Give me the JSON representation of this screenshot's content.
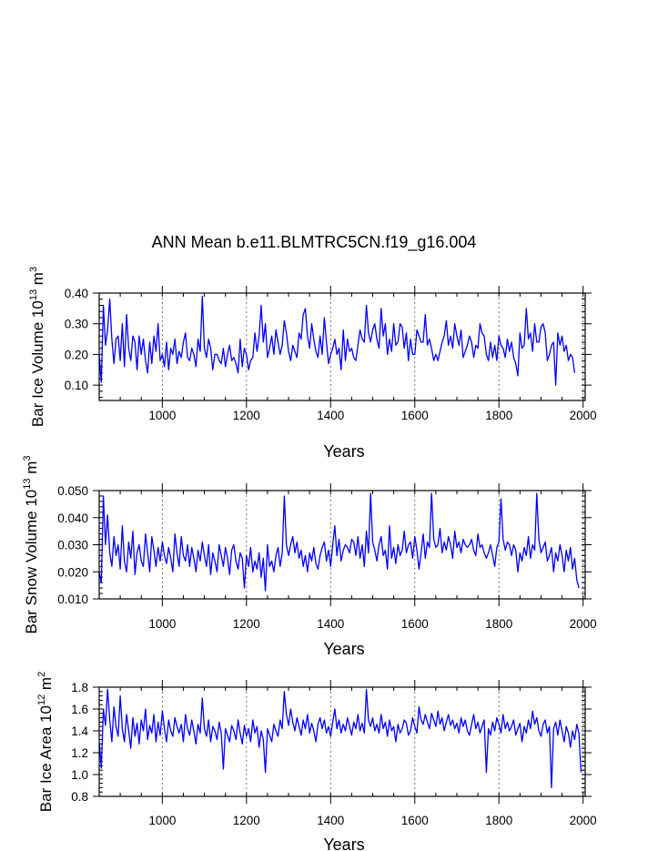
{
  "figure": {
    "title": "ANN Mean b.e11.BLMTRC5CN.f19_g16.004",
    "line_color": "#0000ff"
  },
  "chart_data": [
    {
      "type": "line",
      "series_name": "Bar Ice Volume",
      "ylabel_main": "Bar Ice Volume 10",
      "ylabel_exp": "13",
      "ylabel_unit": " m",
      "ylabel_unit_exp": "3",
      "xlabel": "Years",
      "xlim": [
        850,
        2005
      ],
      "ylim": [
        0.05,
        0.4
      ],
      "xticks": [
        1000,
        1200,
        1400,
        1600,
        1800,
        2000
      ],
      "xtick_labels": [
        "1000",
        "1200",
        "1400",
        "1600",
        "1800",
        "2000"
      ],
      "yticks": [
        0.1,
        0.2,
        0.3,
        0.4
      ],
      "ytick_labels": [
        "0.10",
        "0.20",
        "0.30",
        "0.40"
      ],
      "grid_x": "dashed vertical at each major x tick",
      "year_start": 850,
      "year_step": 5,
      "values": [
        0.2,
        0.11,
        0.36,
        0.23,
        0.28,
        0.38,
        0.25,
        0.17,
        0.25,
        0.26,
        0.18,
        0.3,
        0.16,
        0.33,
        0.22,
        0.18,
        0.26,
        0.24,
        0.15,
        0.26,
        0.2,
        0.25,
        0.18,
        0.14,
        0.24,
        0.17,
        0.26,
        0.21,
        0.3,
        0.18,
        0.2,
        0.16,
        0.24,
        0.15,
        0.22,
        0.2,
        0.25,
        0.17,
        0.21,
        0.19,
        0.24,
        0.27,
        0.19,
        0.18,
        0.22,
        0.2,
        0.16,
        0.25,
        0.21,
        0.39,
        0.22,
        0.19,
        0.25,
        0.22,
        0.15,
        0.2,
        0.2,
        0.18,
        0.17,
        0.22,
        0.16,
        0.2,
        0.23,
        0.18,
        0.19,
        0.17,
        0.14,
        0.25,
        0.16,
        0.22,
        0.2,
        0.15,
        0.18,
        0.19,
        0.27,
        0.21,
        0.26,
        0.36,
        0.24,
        0.3,
        0.19,
        0.22,
        0.26,
        0.2,
        0.28,
        0.24,
        0.2,
        0.23,
        0.31,
        0.27,
        0.21,
        0.18,
        0.23,
        0.21,
        0.19,
        0.27,
        0.25,
        0.33,
        0.35,
        0.26,
        0.22,
        0.3,
        0.25,
        0.21,
        0.19,
        0.26,
        0.2,
        0.32,
        0.24,
        0.17,
        0.2,
        0.22,
        0.25,
        0.2,
        0.22,
        0.15,
        0.28,
        0.18,
        0.25,
        0.21,
        0.22,
        0.19,
        0.18,
        0.23,
        0.28,
        0.25,
        0.24,
        0.36,
        0.27,
        0.24,
        0.28,
        0.3,
        0.25,
        0.22,
        0.35,
        0.26,
        0.3,
        0.2,
        0.25,
        0.21,
        0.3,
        0.23,
        0.24,
        0.3,
        0.29,
        0.22,
        0.27,
        0.18,
        0.25,
        0.2,
        0.2,
        0.28,
        0.26,
        0.24,
        0.24,
        0.33,
        0.23,
        0.25,
        0.22,
        0.18,
        0.2,
        0.18,
        0.21,
        0.24,
        0.26,
        0.31,
        0.23,
        0.26,
        0.22,
        0.3,
        0.26,
        0.23,
        0.28,
        0.19,
        0.21,
        0.23,
        0.26,
        0.24,
        0.19,
        0.23,
        0.22,
        0.3,
        0.27,
        0.26,
        0.2,
        0.18,
        0.24,
        0.19,
        0.23,
        0.18,
        0.26,
        0.23,
        0.22,
        0.19,
        0.25,
        0.21,
        0.24,
        0.19,
        0.17,
        0.13,
        0.27,
        0.22,
        0.23,
        0.35,
        0.25,
        0.27,
        0.21,
        0.3,
        0.24,
        0.24,
        0.29,
        0.3,
        0.27,
        0.18,
        0.2,
        0.23,
        0.24,
        0.1,
        0.27,
        0.23,
        0.26,
        0.21,
        0.23,
        0.18,
        0.2,
        0.19,
        0.14
      ]
    },
    {
      "type": "line",
      "series_name": "Bar Snow Volume",
      "ylabel_main": "Bar Snow Volume 10",
      "ylabel_exp": "13",
      "ylabel_unit": " m",
      "ylabel_unit_exp": "3",
      "xlabel": "Years",
      "xlim": [
        850,
        2005
      ],
      "ylim": [
        0.01,
        0.05
      ],
      "xticks": [
        1000,
        1200,
        1400,
        1600,
        1800,
        2000
      ],
      "xtick_labels": [
        "1000",
        "1200",
        "1400",
        "1600",
        "1800",
        "2000"
      ],
      "yticks": [
        0.01,
        0.02,
        0.03,
        0.04,
        0.05
      ],
      "ytick_labels": [
        "0.010",
        "0.020",
        "0.030",
        "0.040",
        "0.050"
      ],
      "grid_x": "dashed vertical at each major x tick",
      "year_start": 850,
      "year_step": 5,
      "values": [
        0.02,
        0.016,
        0.048,
        0.03,
        0.041,
        0.027,
        0.022,
        0.033,
        0.026,
        0.03,
        0.021,
        0.037,
        0.024,
        0.02,
        0.031,
        0.025,
        0.035,
        0.019,
        0.027,
        0.03,
        0.024,
        0.022,
        0.034,
        0.027,
        0.02,
        0.033,
        0.028,
        0.022,
        0.029,
        0.024,
        0.031,
        0.026,
        0.023,
        0.029,
        0.025,
        0.02,
        0.034,
        0.027,
        0.022,
        0.033,
        0.026,
        0.024,
        0.03,
        0.022,
        0.029,
        0.025,
        0.02,
        0.028,
        0.024,
        0.031,
        0.026,
        0.022,
        0.03,
        0.019,
        0.027,
        0.024,
        0.02,
        0.03,
        0.026,
        0.022,
        0.029,
        0.025,
        0.019,
        0.028,
        0.03,
        0.024,
        0.021,
        0.027,
        0.025,
        0.014,
        0.026,
        0.022,
        0.029,
        0.02,
        0.024,
        0.021,
        0.027,
        0.018,
        0.025,
        0.013,
        0.03,
        0.022,
        0.024,
        0.02,
        0.026,
        0.029,
        0.022,
        0.027,
        0.048,
        0.03,
        0.026,
        0.03,
        0.033,
        0.027,
        0.031,
        0.025,
        0.028,
        0.022,
        0.026,
        0.02,
        0.027,
        0.024,
        0.029,
        0.023,
        0.021,
        0.026,
        0.029,
        0.031,
        0.024,
        0.028,
        0.022,
        0.03,
        0.037,
        0.026,
        0.032,
        0.024,
        0.028,
        0.03,
        0.029,
        0.027,
        0.032,
        0.031,
        0.026,
        0.033,
        0.025,
        0.03,
        0.022,
        0.035,
        0.027,
        0.049,
        0.031,
        0.028,
        0.024,
        0.03,
        0.033,
        0.026,
        0.028,
        0.021,
        0.037,
        0.025,
        0.029,
        0.023,
        0.03,
        0.026,
        0.028,
        0.035,
        0.027,
        0.03,
        0.031,
        0.025,
        0.033,
        0.028,
        0.021,
        0.027,
        0.034,
        0.025,
        0.031,
        0.029,
        0.049,
        0.032,
        0.029,
        0.03,
        0.036,
        0.027,
        0.031,
        0.028,
        0.033,
        0.03,
        0.025,
        0.035,
        0.029,
        0.031,
        0.027,
        0.032,
        0.03,
        0.029,
        0.03,
        0.032,
        0.028,
        0.026,
        0.034,
        0.029,
        0.03,
        0.027,
        0.025,
        0.027,
        0.03,
        0.026,
        0.022,
        0.029,
        0.031,
        0.047,
        0.032,
        0.028,
        0.031,
        0.03,
        0.026,
        0.03,
        0.028,
        0.02,
        0.027,
        0.024,
        0.029,
        0.026,
        0.033,
        0.025,
        0.03,
        0.028,
        0.049,
        0.032,
        0.027,
        0.029,
        0.031,
        0.024,
        0.026,
        0.029,
        0.02,
        0.027,
        0.024,
        0.03,
        0.026,
        0.02,
        0.028,
        0.024,
        0.029,
        0.021,
        0.025,
        0.017,
        0.014
      ]
    },
    {
      "type": "line",
      "series_name": "Bar Ice Area",
      "ylabel_main": "Bar Ice Area 10",
      "ylabel_exp": "12",
      "ylabel_unit": " m",
      "ylabel_unit_exp": "2",
      "xlabel": "Years",
      "xlim": [
        850,
        2005
      ],
      "ylim": [
        0.8,
        1.8
      ],
      "xticks": [
        1000,
        1200,
        1400,
        1600,
        1800,
        2000
      ],
      "xtick_labels": [
        "1000",
        "1200",
        "1400",
        "1600",
        "1800",
        "2000"
      ],
      "yticks": [
        0.8,
        1.0,
        1.2,
        1.4,
        1.6,
        1.8
      ],
      "ytick_labels": [
        "0.8",
        "1.0",
        "1.2",
        "1.4",
        "1.6",
        "1.8"
      ],
      "grid_x": "dashed vertical at each major x tick",
      "year_start": 850,
      "year_step": 5,
      "values": [
        1.3,
        1.06,
        1.6,
        1.45,
        1.78,
        1.5,
        1.3,
        1.62,
        1.44,
        1.35,
        1.72,
        1.42,
        1.3,
        1.55,
        1.4,
        1.24,
        1.52,
        1.35,
        1.47,
        1.28,
        1.5,
        1.4,
        1.6,
        1.32,
        1.45,
        1.38,
        1.55,
        1.3,
        1.48,
        1.36,
        1.58,
        1.42,
        1.3,
        1.5,
        1.4,
        1.35,
        1.52,
        1.44,
        1.38,
        1.46,
        1.3,
        1.55,
        1.42,
        1.36,
        1.5,
        1.4,
        1.28,
        1.46,
        1.38,
        1.7,
        1.42,
        1.35,
        1.5,
        1.3,
        1.44,
        1.4,
        1.32,
        1.48,
        1.38,
        1.05,
        1.42,
        1.36,
        1.3,
        1.45,
        1.4,
        1.32,
        1.5,
        1.38,
        1.28,
        1.45,
        1.35,
        1.42,
        1.3,
        1.5,
        1.38,
        1.44,
        1.25,
        1.4,
        1.32,
        1.02,
        1.42,
        1.36,
        1.3,
        1.46,
        1.4,
        1.35,
        1.5,
        1.42,
        1.76,
        1.55,
        1.45,
        1.6,
        1.48,
        1.4,
        1.52,
        1.44,
        1.36,
        1.5,
        1.42,
        1.55,
        1.38,
        1.47,
        1.4,
        1.3,
        1.46,
        1.52,
        1.42,
        1.5,
        1.38,
        1.44,
        1.35,
        1.48,
        1.6,
        1.42,
        1.5,
        1.38,
        1.46,
        1.4,
        1.52,
        1.44,
        1.36,
        1.48,
        1.42,
        1.55,
        1.4,
        1.47,
        1.38,
        1.78,
        1.5,
        1.44,
        1.52,
        1.4,
        1.46,
        1.38,
        1.55,
        1.42,
        1.48,
        1.35,
        1.5,
        1.4,
        1.44,
        1.3,
        1.46,
        1.38,
        1.42,
        1.5,
        1.47,
        1.36,
        1.4,
        1.52,
        1.44,
        1.38,
        1.62,
        1.5,
        1.46,
        1.55,
        1.48,
        1.42,
        1.56,
        1.5,
        1.44,
        1.58,
        1.46,
        1.52,
        1.4,
        1.48,
        1.55,
        1.45,
        1.5,
        1.42,
        1.47,
        1.38,
        1.52,
        1.44,
        1.5,
        1.4,
        1.36,
        1.46,
        1.55,
        1.42,
        1.48,
        1.38,
        1.44,
        1.5,
        1.02,
        1.42,
        1.36,
        1.48,
        1.4,
        1.52,
        1.46,
        1.38,
        1.55,
        1.42,
        1.48,
        1.4,
        1.44,
        1.5,
        1.36,
        1.42,
        1.47,
        1.3,
        1.44,
        1.38,
        1.5,
        1.42,
        1.58,
        1.46,
        1.52,
        1.4,
        1.35,
        1.46,
        1.5,
        1.38,
        1.44,
        0.88,
        1.42,
        1.48,
        1.36,
        1.5,
        1.4,
        1.3,
        1.44,
        1.38,
        1.25,
        1.4,
        1.32,
        1.46,
        1.38,
        1.02
      ]
    }
  ]
}
